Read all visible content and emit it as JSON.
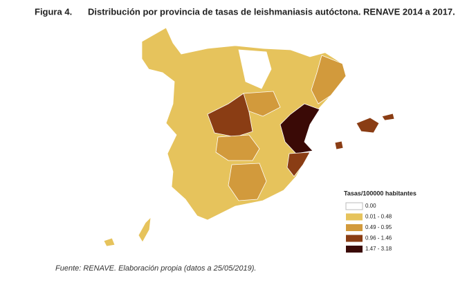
{
  "figure_label": "Figura 4.",
  "title": "Distribución por provincia de tasas de leishmaniasis autóctona. RENAVE 2014 a 2017.",
  "legend": {
    "title": "Tasas/100000 habitantes",
    "items": [
      {
        "label": "0.00",
        "color": "#ffffff"
      },
      {
        "label": "0.01 - 0.48",
        "color": "#e6c35c"
      },
      {
        "label": "0.49 - 0.95",
        "color": "#d29a3c"
      },
      {
        "label": "0.96 - 1.46",
        "color": "#8a3d14"
      },
      {
        "label": "1.47 - 3.18",
        "color": "#3a0a06"
      }
    ]
  },
  "source": "Fuente: RENAVE. Elaboración propia (datos a 25/05/2019)."
}
